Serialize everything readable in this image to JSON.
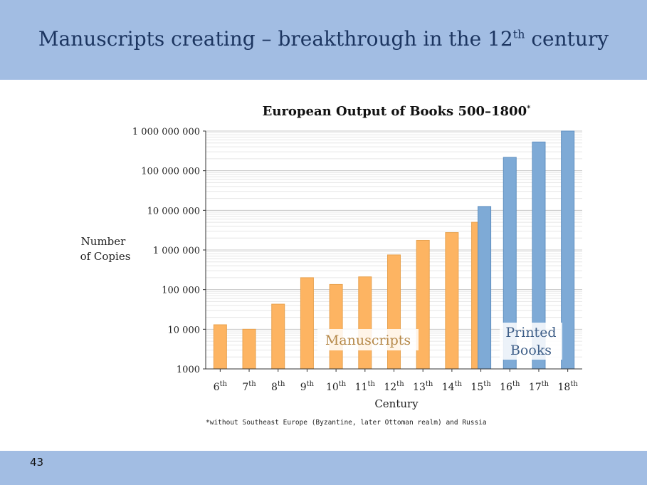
{
  "slide": {
    "title_pre": "Manuscripts creating – breakthrough in the 12",
    "title_sup": "th",
    "title_post": " century",
    "page_number": "43"
  },
  "chart_data": {
    "type": "bar",
    "title": "European Output of Books 500–1800",
    "title_mark": "*",
    "ylabel_line1": "Number",
    "ylabel_line2": "of Copies",
    "xlabel": "Century",
    "yscale": "log",
    "ylim": [
      1000,
      1000000000
    ],
    "yticks": [
      "1 000 000 000",
      "100 000 000",
      "10 000 000",
      "1 000 000",
      "100 000",
      "10 000",
      "1000"
    ],
    "ytick_values": [
      1000000000,
      100000000,
      10000000,
      1000000,
      100000,
      10000,
      1000
    ],
    "categories": [
      {
        "num": "6",
        "suf": "th"
      },
      {
        "num": "7",
        "suf": "th"
      },
      {
        "num": "8",
        "suf": "th"
      },
      {
        "num": "9",
        "suf": "th"
      },
      {
        "num": "10",
        "suf": "th"
      },
      {
        "num": "11",
        "suf": "th"
      },
      {
        "num": "12",
        "suf": "th"
      },
      {
        "num": "13",
        "suf": "th"
      },
      {
        "num": "14",
        "suf": "th"
      },
      {
        "num": "15",
        "suf": "th"
      },
      {
        "num": "16",
        "suf": "th"
      },
      {
        "num": "17",
        "suf": "th"
      },
      {
        "num": "18",
        "suf": "th"
      }
    ],
    "series": [
      {
        "name": "Manuscripts",
        "color": "#fdb462",
        "values": [
          13000,
          10000,
          43000,
          200000,
          135000,
          210000,
          750000,
          1750000,
          2750000,
          5000000,
          null,
          null,
          null
        ]
      },
      {
        "name_line1": "Printed",
        "name_line2": "Books",
        "color": "#7eaad6",
        "values": [
          null,
          null,
          null,
          null,
          null,
          null,
          null,
          null,
          null,
          12500000,
          217000000,
          530000000,
          1000000000
        ]
      }
    ],
    "footnote": "*without Southeast Europe (Byzantine, later Ottoman realm) and Russia",
    "grid": true
  }
}
